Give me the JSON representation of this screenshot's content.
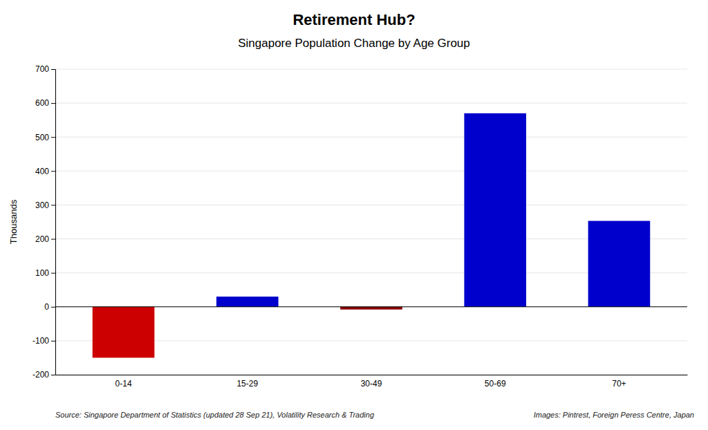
{
  "chart_data": {
    "type": "bar",
    "title": "Retirement Hub?",
    "subtitle": "Singapore Population Change by Age Group",
    "categories": [
      "0-14",
      "15-29",
      "30-49",
      "50-69",
      "70+"
    ],
    "values": [
      -150,
      30,
      -8,
      570,
      253
    ],
    "colors": [
      "#cc0000",
      "#0000cc",
      "#8b0000",
      "#0000cc",
      "#0000cc"
    ],
    "ylabel": "Thousands",
    "ylim": [
      -200,
      700
    ],
    "yticks": [
      -200,
      -100,
      0,
      100,
      200,
      300,
      400,
      500,
      600,
      700
    ],
    "grid": true,
    "annotations": [
      "Source: Singapore Department of Statistics (updated 28 Sep 21), Volatility Research & Trading",
      "Images: Pintrest, Foreign Peress Centre, Japan"
    ]
  }
}
